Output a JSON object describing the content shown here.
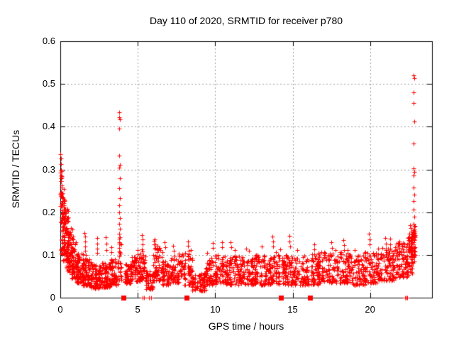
{
  "colors": {
    "marker": "#ff0000",
    "grid": "#9e9e9e",
    "axis": "#000000",
    "background": "#ffffff"
  },
  "chart_data": {
    "type": "scatter",
    "title": "Day 110 of 2020, SRMTID for receiver p780",
    "xlabel": "GPS time / hours",
    "ylabel": "SRMTID / TECUs",
    "xlim": [
      0,
      24
    ],
    "ylim": [
      0,
      0.6
    ],
    "x_ticks": [
      0,
      5,
      10,
      15,
      20
    ],
    "x_tick_labels": [
      "0",
      "5",
      "10",
      "15",
      "20"
    ],
    "y_ticks": [
      0,
      0.1,
      0.2,
      0.3,
      0.4,
      0.5,
      0.6
    ],
    "y_tick_labels": [
      "0",
      "0.1",
      "0.2",
      "0.3",
      "0.4",
      "0.5",
      "0.6"
    ],
    "grid": true,
    "legend": "none",
    "marker": "plus",
    "feature_points": [
      [
        0.02,
        0.335
      ],
      [
        0.04,
        0.325
      ],
      [
        0.03,
        0.312
      ],
      [
        0.05,
        0.3
      ],
      [
        0.02,
        0.292
      ],
      [
        0.06,
        0.272
      ],
      [
        0.08,
        0.258
      ],
      [
        0.05,
        0.248
      ],
      [
        0.1,
        0.236
      ],
      [
        0.13,
        0.226
      ],
      [
        0.03,
        0.215
      ],
      [
        0.07,
        0.205
      ],
      [
        1.58,
        0.152
      ],
      [
        1.6,
        0.143
      ],
      [
        1.62,
        0.131
      ],
      [
        1.59,
        0.12
      ],
      [
        1.61,
        0.11
      ],
      [
        1.63,
        0.1
      ],
      [
        1.6,
        0.09
      ],
      [
        2.36,
        0.14
      ],
      [
        2.38,
        0.127
      ],
      [
        2.4,
        0.115
      ],
      [
        2.37,
        0.104
      ],
      [
        2.94,
        0.141
      ],
      [
        2.96,
        0.127
      ],
      [
        2.98,
        0.112
      ],
      [
        3.3,
        0.118
      ],
      [
        3.32,
        0.106
      ],
      [
        3.78,
        0.15
      ],
      [
        3.8,
        0.434
      ],
      [
        3.82,
        0.422
      ],
      [
        3.83,
        0.418
      ],
      [
        3.81,
        0.395
      ],
      [
        3.8,
        0.332
      ],
      [
        3.83,
        0.31
      ],
      [
        3.81,
        0.304
      ],
      [
        3.84,
        0.28
      ],
      [
        3.8,
        0.256
      ],
      [
        3.83,
        0.233
      ],
      [
        3.82,
        0.216
      ],
      [
        3.8,
        0.199
      ],
      [
        3.84,
        0.186
      ],
      [
        3.81,
        0.173
      ],
      [
        3.83,
        0.161
      ],
      [
        3.8,
        0.149
      ],
      [
        3.82,
        0.138
      ],
      [
        3.84,
        0.127
      ],
      [
        3.81,
        0.116
      ],
      [
        3.83,
        0.106
      ],
      [
        3.86,
        0.141
      ],
      [
        4.98,
        0.112
      ],
      [
        5.0,
        0.101
      ],
      [
        5.28,
        0.146
      ],
      [
        5.3,
        0.136
      ],
      [
        5.32,
        0.124
      ],
      [
        5.29,
        0.113
      ],
      [
        6.03,
        0.133
      ],
      [
        6.06,
        0.124
      ],
      [
        6.1,
        0.136
      ],
      [
        6.12,
        0.125
      ],
      [
        6.08,
        0.114
      ],
      [
        6.28,
        0.122
      ],
      [
        6.3,
        0.111
      ],
      [
        6.75,
        0.13
      ],
      [
        6.77,
        0.118
      ],
      [
        7.3,
        0.121
      ],
      [
        7.32,
        0.11
      ],
      [
        8.24,
        0.132
      ],
      [
        8.26,
        0.121
      ],
      [
        8.28,
        0.11
      ],
      [
        8.45,
        0.112
      ],
      [
        9.5,
        0.104
      ],
      [
        9.84,
        0.128
      ],
      [
        9.86,
        0.117
      ],
      [
        10.44,
        0.13
      ],
      [
        10.46,
        0.118
      ],
      [
        11.0,
        0.13
      ],
      [
        11.02,
        0.118
      ],
      [
        11.25,
        0.112
      ],
      [
        12.0,
        0.115
      ],
      [
        12.2,
        0.11
      ],
      [
        13.0,
        0.12
      ],
      [
        13.7,
        0.143
      ],
      [
        13.72,
        0.131
      ],
      [
        13.74,
        0.119
      ],
      [
        14.2,
        0.113
      ],
      [
        14.78,
        0.145
      ],
      [
        14.8,
        0.132
      ],
      [
        14.82,
        0.12
      ],
      [
        15.3,
        0.112
      ],
      [
        16.38,
        0.125
      ],
      [
        16.4,
        0.113
      ],
      [
        17.5,
        0.129
      ],
      [
        17.52,
        0.117
      ],
      [
        18.28,
        0.135
      ],
      [
        18.3,
        0.123
      ],
      [
        18.32,
        0.111
      ],
      [
        19.0,
        0.112
      ],
      [
        19.94,
        0.15
      ],
      [
        19.96,
        0.136
      ],
      [
        19.95,
        0.124
      ],
      [
        20.5,
        0.115
      ],
      [
        20.98,
        0.14
      ],
      [
        21.0,
        0.127
      ],
      [
        21.3,
        0.138
      ],
      [
        21.32,
        0.125
      ],
      [
        21.9,
        0.132
      ],
      [
        22.1,
        0.128
      ],
      [
        22.58,
        0.17
      ],
      [
        22.62,
        0.163
      ],
      [
        22.65,
        0.155
      ],
      [
        22.82,
        0.52
      ],
      [
        22.84,
        0.514
      ],
      [
        22.83,
        0.481
      ],
      [
        22.82,
        0.456
      ],
      [
        22.84,
        0.412
      ],
      [
        22.83,
        0.361
      ],
      [
        22.82,
        0.302
      ],
      [
        22.84,
        0.295
      ],
      [
        22.83,
        0.286
      ],
      [
        22.82,
        0.257
      ],
      [
        22.84,
        0.241
      ],
      [
        22.83,
        0.226
      ],
      [
        22.82,
        0.206
      ],
      [
        22.84,
        0.189
      ],
      [
        22.82,
        0.173
      ],
      [
        22.85,
        0.166
      ],
      [
        22.8,
        0.158
      ],
      [
        22.86,
        0.151
      ],
      [
        22.81,
        0.143
      ],
      [
        22.84,
        0.134
      ],
      [
        22.8,
        0.125
      ],
      [
        22.85,
        0.116
      ],
      [
        22.82,
        0.109
      ],
      [
        22.86,
        0.101
      ],
      [
        22.79,
        0.094
      ],
      [
        22.88,
        0.168
      ],
      [
        22.9,
        0.155
      ],
      [
        22.92,
        0.142
      ]
    ],
    "band_segments": [
      [
        0.0,
        0.12,
        0.17,
        0.3,
        16,
        1.0
      ],
      [
        0.03,
        0.3,
        0.1,
        0.26,
        60,
        1.2
      ],
      [
        0.15,
        0.55,
        0.085,
        0.21,
        75,
        1.3
      ],
      [
        0.4,
        0.85,
        0.06,
        0.165,
        75,
        1.4
      ],
      [
        0.7,
        1.15,
        0.045,
        0.13,
        70,
        1.5
      ],
      [
        1.05,
        1.55,
        0.035,
        0.105,
        70,
        1.5
      ],
      [
        1.45,
        2.05,
        0.028,
        0.09,
        80,
        1.6
      ],
      [
        2.0,
        2.65,
        0.022,
        0.08,
        80,
        1.6
      ],
      [
        2.6,
        3.25,
        0.025,
        0.085,
        80,
        1.6
      ],
      [
        3.2,
        3.72,
        0.03,
        0.09,
        60,
        1.5
      ],
      [
        3.72,
        3.98,
        0.04,
        0.13,
        22,
        1.2
      ],
      [
        4.0,
        4.6,
        0.033,
        0.08,
        62,
        1.5
      ],
      [
        4.55,
        5.15,
        0.038,
        0.095,
        58,
        1.4
      ],
      [
        5.1,
        5.55,
        0.04,
        0.11,
        45,
        1.3
      ],
      [
        5.5,
        6.0,
        0.02,
        0.062,
        45,
        1.4
      ],
      [
        5.95,
        6.65,
        0.04,
        0.12,
        65,
        1.4
      ],
      [
        6.6,
        7.15,
        0.03,
        0.085,
        50,
        1.5
      ],
      [
        7.1,
        7.65,
        0.035,
        0.1,
        50,
        1.4
      ],
      [
        7.6,
        8.55,
        0.03,
        0.105,
        85,
        1.5
      ],
      [
        8.5,
        9.45,
        0.016,
        0.058,
        75,
        1.4
      ],
      [
        9.4,
        10.05,
        0.03,
        0.1,
        60,
        1.4
      ],
      [
        10.0,
        10.7,
        0.035,
        0.1,
        62,
        1.4
      ],
      [
        10.65,
        11.65,
        0.03,
        0.098,
        88,
        1.5
      ],
      [
        11.6,
        12.6,
        0.03,
        0.096,
        88,
        1.5
      ],
      [
        12.55,
        13.6,
        0.03,
        0.1,
        90,
        1.5
      ],
      [
        13.55,
        14.7,
        0.032,
        0.108,
        100,
        1.5
      ],
      [
        14.65,
        15.7,
        0.03,
        0.096,
        90,
        1.5
      ],
      [
        15.65,
        16.7,
        0.03,
        0.104,
        90,
        1.5
      ],
      [
        16.65,
        17.7,
        0.035,
        0.108,
        90,
        1.5
      ],
      [
        17.65,
        18.7,
        0.035,
        0.112,
        90,
        1.5
      ],
      [
        18.65,
        19.7,
        0.03,
        0.1,
        90,
        1.5
      ],
      [
        19.65,
        20.7,
        0.035,
        0.112,
        90,
        1.5
      ],
      [
        20.65,
        21.7,
        0.04,
        0.118,
        92,
        1.4
      ],
      [
        21.65,
        22.4,
        0.048,
        0.132,
        70,
        1.3
      ],
      [
        22.35,
        22.75,
        0.05,
        0.15,
        55,
        1.1
      ],
      [
        22.6,
        22.9,
        0.08,
        0.16,
        40,
        1.0
      ]
    ],
    "zero_plus_x": [
      5.3,
      5.42,
      5.72,
      5.86,
      22.28,
      22.34,
      22.4
    ],
    "zero_square_x": [
      4.07,
      8.15,
      14.23,
      16.11
    ]
  }
}
